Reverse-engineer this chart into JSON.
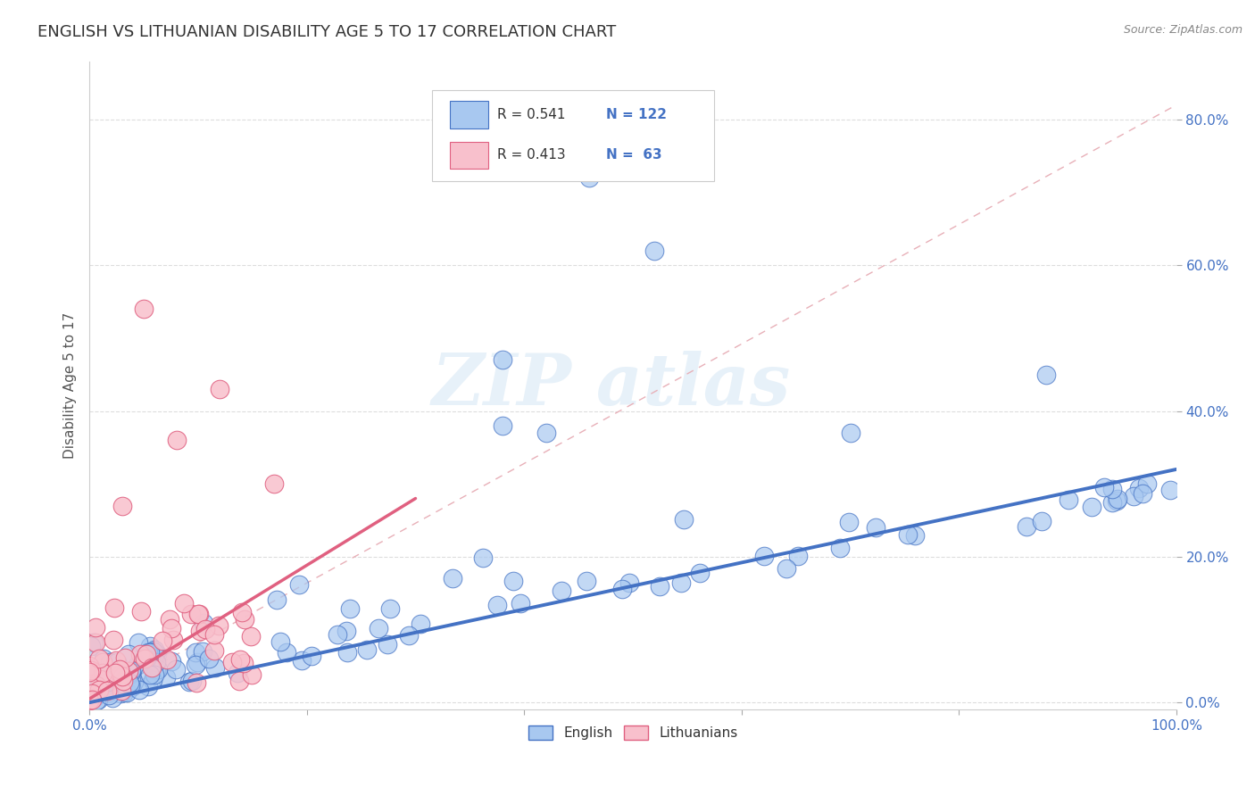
{
  "title": "ENGLISH VS LITHUANIAN DISABILITY AGE 5 TO 17 CORRELATION CHART",
  "source": "Source: ZipAtlas.com",
  "ylabel": "Disability Age 5 to 17",
  "xlim": [
    0.0,
    1.0
  ],
  "ylim": [
    -0.01,
    0.88
  ],
  "xticks": [
    0.0,
    0.2,
    0.4,
    0.6,
    0.8,
    1.0
  ],
  "xticklabels": [
    "0.0%",
    "",
    "",
    "",
    "",
    "100.0%"
  ],
  "ytick_vals": [
    0.0,
    0.2,
    0.4,
    0.6,
    0.8
  ],
  "yticklabels": [
    "0.0%",
    "20.0%",
    "40.0%",
    "60.0%",
    "80.0%"
  ],
  "english_color": "#a8c8f0",
  "english_edge_color": "#4472c4",
  "lithuanian_color": "#f8c0cc",
  "lithuanian_edge_color": "#e06080",
  "english_R": 0.541,
  "english_N": 122,
  "lithuanian_R": 0.413,
  "lithuanian_N": 63,
  "title_fontsize": 13,
  "axis_label_fontsize": 11,
  "tick_fontsize": 11,
  "background_color": "#ffffff",
  "legend_english_label": "English",
  "legend_lithuanian_label": "Lithuanians",
  "ref_line_color": "#f0a0b0",
  "ytick_label_color": "#4472c4",
  "xtick_label_color": "#4472c4"
}
